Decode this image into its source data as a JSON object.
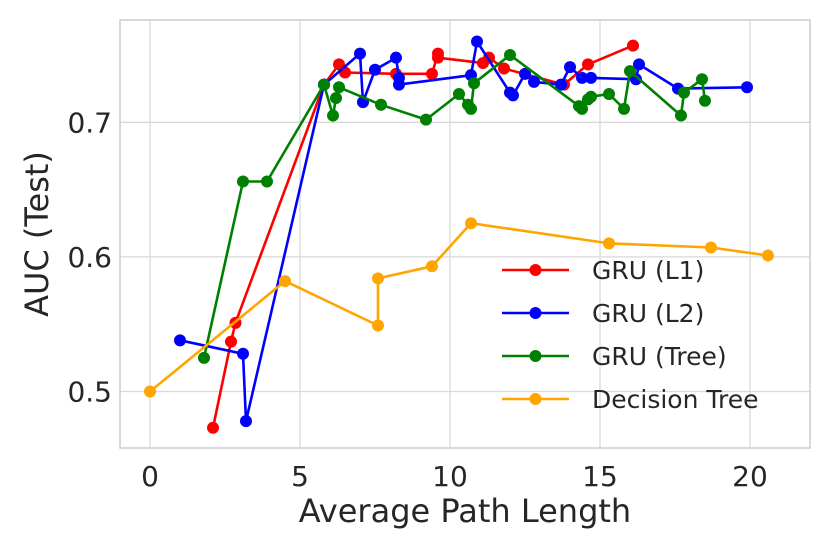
{
  "chart_data": {
    "type": "line",
    "title": "",
    "xlabel": "Average Path Length",
    "ylabel": "AUC (Test)",
    "xlim": [
      -1,
      22
    ],
    "ylim": [
      0.458,
      0.776
    ],
    "xticks": [
      0,
      5,
      10,
      15,
      20
    ],
    "yticks": [
      0.5,
      0.6,
      0.7
    ],
    "grid": true,
    "legend_position": "lower-right",
    "series": [
      {
        "name": "GRU (L1)",
        "color": "#ff0000",
        "points": [
          [
            2.1,
            0.473
          ],
          [
            2.7,
            0.537
          ],
          [
            2.85,
            0.551
          ],
          [
            5.8,
            0.728
          ],
          [
            6.3,
            0.743
          ],
          [
            6.5,
            0.737
          ],
          [
            8.2,
            0.736
          ],
          [
            9.4,
            0.736
          ],
          [
            9.6,
            0.751
          ],
          [
            9.6,
            0.748
          ],
          [
            11.1,
            0.744
          ],
          [
            11.3,
            0.748
          ],
          [
            11.8,
            0.74
          ],
          [
            13.8,
            0.728
          ],
          [
            14.6,
            0.743
          ],
          [
            16.1,
            0.757
          ]
        ]
      },
      {
        "name": "GRU (L2)",
        "color": "#0000ff",
        "points": [
          [
            1.0,
            0.538
          ],
          [
            3.1,
            0.528
          ],
          [
            3.2,
            0.478
          ],
          [
            5.8,
            0.728
          ],
          [
            7.0,
            0.751
          ],
          [
            7.1,
            0.715
          ],
          [
            7.5,
            0.739
          ],
          [
            8.2,
            0.748
          ],
          [
            8.3,
            0.733
          ],
          [
            8.3,
            0.728
          ],
          [
            10.7,
            0.735
          ],
          [
            10.9,
            0.76
          ],
          [
            12.0,
            0.722
          ],
          [
            12.1,
            0.72
          ],
          [
            12.5,
            0.736
          ],
          [
            12.8,
            0.73
          ],
          [
            13.7,
            0.728
          ],
          [
            14.0,
            0.741
          ],
          [
            14.4,
            0.733
          ],
          [
            14.7,
            0.733
          ],
          [
            16.2,
            0.732
          ],
          [
            16.3,
            0.743
          ],
          [
            17.6,
            0.725
          ],
          [
            19.9,
            0.726
          ]
        ]
      },
      {
        "name": "GRU (Tree)",
        "color": "#008000",
        "points": [
          [
            1.8,
            0.525
          ],
          [
            3.1,
            0.656
          ],
          [
            3.9,
            0.656
          ],
          [
            5.8,
            0.728
          ],
          [
            6.1,
            0.705
          ],
          [
            6.2,
            0.718
          ],
          [
            6.3,
            0.726
          ],
          [
            7.7,
            0.713
          ],
          [
            9.2,
            0.702
          ],
          [
            10.3,
            0.721
          ],
          [
            10.6,
            0.713
          ],
          [
            10.7,
            0.71
          ],
          [
            10.8,
            0.729
          ],
          [
            12.0,
            0.75
          ],
          [
            14.3,
            0.712
          ],
          [
            14.4,
            0.71
          ],
          [
            14.6,
            0.717
          ],
          [
            14.7,
            0.719
          ],
          [
            15.3,
            0.721
          ],
          [
            15.8,
            0.71
          ],
          [
            16.0,
            0.738
          ],
          [
            17.7,
            0.705
          ],
          [
            17.8,
            0.722
          ],
          [
            18.4,
            0.732
          ],
          [
            18.5,
            0.716
          ]
        ]
      },
      {
        "name": "Decision Tree",
        "color": "#ffa500",
        "points": [
          [
            0.0,
            0.5
          ],
          [
            4.5,
            0.582
          ],
          [
            7.6,
            0.549
          ],
          [
            7.6,
            0.584
          ],
          [
            9.4,
            0.593
          ],
          [
            10.7,
            0.625
          ],
          [
            15.3,
            0.61
          ],
          [
            18.7,
            0.607
          ],
          [
            20.6,
            0.601
          ]
        ]
      }
    ]
  }
}
